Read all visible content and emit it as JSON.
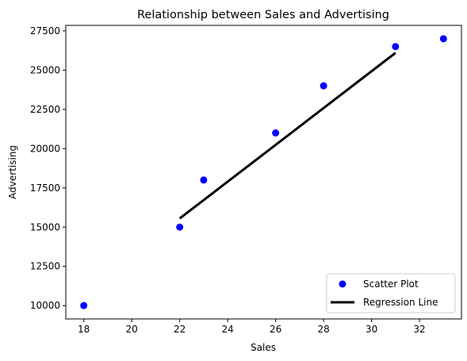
{
  "chart_data": {
    "type": "scatter",
    "title": "Relationship between Sales and Advertising",
    "xlabel": "Sales",
    "ylabel": "Advertising",
    "xlim": [
      17.25,
      33.75
    ],
    "ylim": [
      9150,
      27850
    ],
    "xticks": [
      18,
      20,
      22,
      24,
      26,
      28,
      30,
      32
    ],
    "yticks": [
      10000,
      12500,
      15000,
      17500,
      20000,
      22500,
      25000,
      27500
    ],
    "grid": false,
    "legend_position": "bottom-right",
    "series": [
      {
        "name": "Scatter Plot",
        "type": "scatter",
        "color": "#0000ff",
        "points": [
          {
            "x": 18,
            "y": 10000
          },
          {
            "x": 22,
            "y": 15000
          },
          {
            "x": 23,
            "y": 18000
          },
          {
            "x": 26,
            "y": 21000
          },
          {
            "x": 28,
            "y": 24000
          },
          {
            "x": 31,
            "y": 26500
          },
          {
            "x": 33,
            "y": 27000
          }
        ]
      },
      {
        "name": "Regression Line",
        "type": "line",
        "color": "#000000",
        "points": [
          {
            "x": 22,
            "y": 15550
          },
          {
            "x": 31,
            "y": 26100
          }
        ]
      }
    ]
  }
}
